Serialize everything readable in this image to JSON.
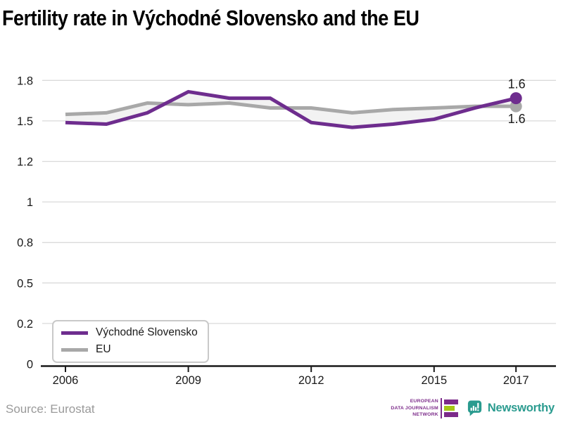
{
  "title": "Fertility rate in Východné Slovensko and the EU",
  "chart_data": {
    "type": "line",
    "x": [
      2006,
      2007,
      2008,
      2009,
      2010,
      2011,
      2012,
      2013,
      2014,
      2015,
      2016,
      2017
    ],
    "series": [
      {
        "name": "Východné Slovensko",
        "color": "#6e2d8e",
        "values": [
          1.49,
          1.48,
          1.55,
          1.68,
          1.64,
          1.64,
          1.49,
          1.46,
          1.48,
          1.51,
          1.58,
          1.64
        ],
        "end_label": "1.6"
      },
      {
        "name": "EU",
        "color": "#a8a8a8",
        "values": [
          1.54,
          1.55,
          1.61,
          1.6,
          1.61,
          1.58,
          1.58,
          1.55,
          1.57,
          1.58,
          1.59,
          1.59
        ],
        "end_label": "1.6"
      }
    ],
    "y_axis": {
      "range": [
        0,
        1.75
      ],
      "ticks": [
        {
          "v": 1.75,
          "label": "1.8"
        },
        {
          "v": 1.5,
          "label": "1.5"
        },
        {
          "v": 1.25,
          "label": "1.2"
        },
        {
          "v": 1.0,
          "label": "1"
        },
        {
          "v": 0.75,
          "label": "0.8"
        },
        {
          "v": 0.5,
          "label": "0.5"
        },
        {
          "v": 0.25,
          "label": "0.2"
        },
        {
          "v": 0,
          "label": "0"
        }
      ]
    },
    "x_axis": {
      "tick_years": [
        2006,
        2009,
        2012,
        2015,
        2017
      ]
    },
    "band_color": "#f2f2f2",
    "grid_color": "#dadada",
    "axis_color": "#1a1a1a",
    "grid": true,
    "legend_position": "bottom-left"
  },
  "footer": {
    "source": "Source: Eurostat",
    "edjn": {
      "lines": [
        "EUROPEAN",
        "DATA JOURNALISM",
        "NETWORK"
      ],
      "purple": "#7c2b8a",
      "green": "#a5c715"
    },
    "newsworthy": {
      "label": "Newsworthy",
      "teal": "#2a9b8f"
    }
  }
}
